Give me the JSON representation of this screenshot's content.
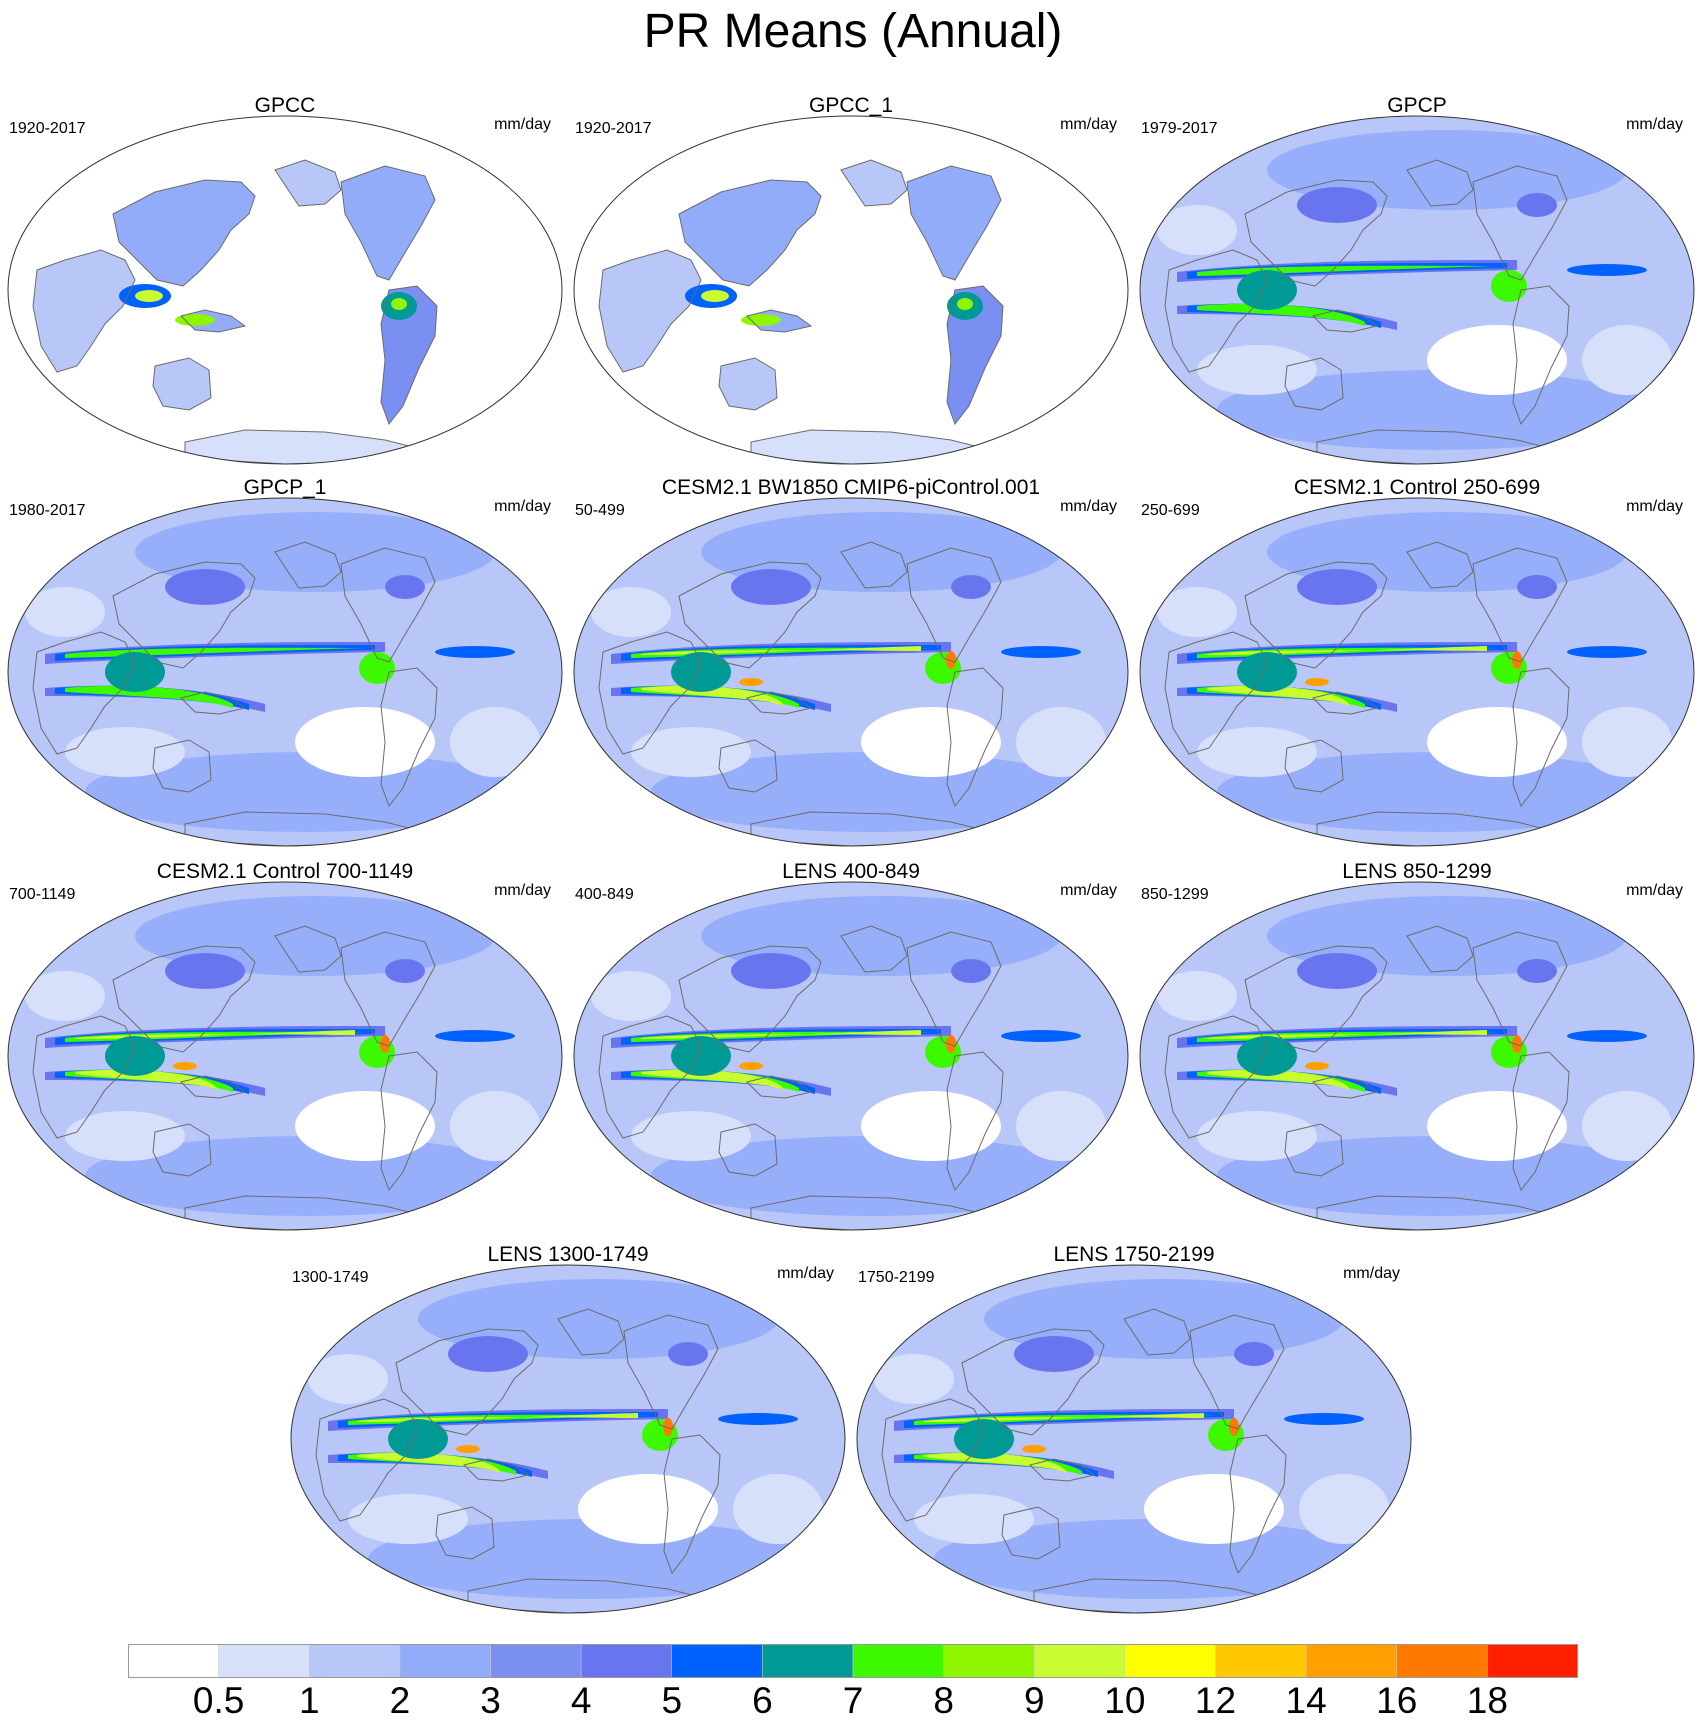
{
  "title": "PR Means (Annual)",
  "units": "mm/day",
  "panels": [
    {
      "title": "GPCC",
      "period": "1920-2017",
      "coverage": "land",
      "itcz": "weak"
    },
    {
      "title": "GPCC_1",
      "period": "1920-2017",
      "coverage": "land",
      "itcz": "weak"
    },
    {
      "title": "GPCP",
      "period": "1979-2017",
      "coverage": "global",
      "itcz": "moderate"
    },
    {
      "title": "GPCP_1",
      "period": "1980-2017",
      "coverage": "global",
      "itcz": "moderate"
    },
    {
      "title": "CESM2.1 BW1850 CMIP6-piControl.001",
      "period": "50-499",
      "coverage": "global",
      "itcz": "strong"
    },
    {
      "title": "CESM2.1 Control 250-699",
      "period": "250-699",
      "coverage": "global",
      "itcz": "strong"
    },
    {
      "title": "CESM2.1 Control 700-1149",
      "period": "700-1149",
      "coverage": "global",
      "itcz": "strong"
    },
    {
      "title": "LENS 400-849",
      "period": "400-849",
      "coverage": "global",
      "itcz": "strong"
    },
    {
      "title": "LENS 850-1299",
      "period": "850-1299",
      "coverage": "global",
      "itcz": "strong"
    },
    {
      "title": "LENS 1300-1749",
      "period": "1300-1749",
      "coverage": "global",
      "itcz": "strong"
    },
    {
      "title": "LENS 1750-2199",
      "period": "1750-2199",
      "coverage": "global",
      "itcz": "strong"
    }
  ],
  "colorbar": {
    "labels": [
      "0.5",
      "1",
      "2",
      "3",
      "4",
      "5",
      "6",
      "7",
      "8",
      "9",
      "10",
      "12",
      "14",
      "16",
      "18"
    ],
    "colors": [
      "#ffffff",
      "#d7e0fb",
      "#b8c7f8",
      "#93acf9",
      "#7b8ff2",
      "#6875ee",
      "#0062fe",
      "#009a96",
      "#3df900",
      "#8ff600",
      "#c8fb30",
      "#ffff00",
      "#ffc800",
      "#ffa000",
      "#ff7800",
      "#ff2000"
    ]
  }
}
